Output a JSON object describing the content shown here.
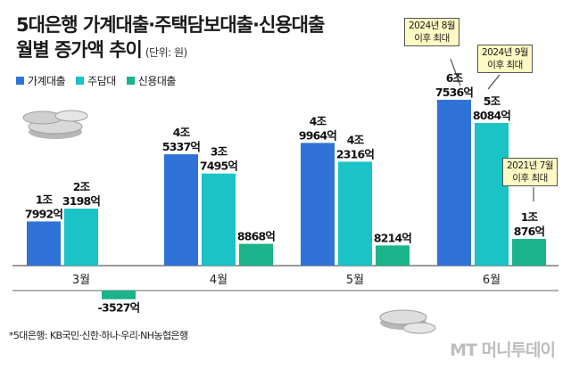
{
  "title_line1": "5대은행 가계대출·주택담보대출·신용대출",
  "title_line2": "월별 증가액 추이",
  "unit": "(단위: 원)",
  "legend": [
    {
      "label": "가계대출",
      "color": "#2f73d8"
    },
    {
      "label": "주담대",
      "color": "#19c3c6"
    },
    {
      "label": "신용대출",
      "color": "#1bb38a"
    }
  ],
  "callouts": [
    {
      "line1": "2024년 8월",
      "line2": "이후 최대"
    },
    {
      "line1": "2024년 9월",
      "line2": "이후 최대"
    },
    {
      "line1": "2021년 7월",
      "line2": "이후 최대"
    }
  ],
  "footnote": "*5대은행: KB국민·신한·하나·우리·NH농협은행",
  "brand": "MT 머니투데이",
  "chart_data": {
    "type": "bar",
    "categories": [
      "3월",
      "4월",
      "5월",
      "6월"
    ],
    "series": [
      {
        "name": "가계대출",
        "color": "#2f73d8",
        "values": [
          17992,
          45337,
          49964,
          67536
        ],
        "labels": [
          [
            "1조",
            "7992억"
          ],
          [
            "4조",
            "5337억"
          ],
          [
            "4조",
            "9964억"
          ],
          [
            "6조",
            "7536억"
          ]
        ]
      },
      {
        "name": "주담대",
        "color": "#19c3c6",
        "values": [
          23198,
          37495,
          42316,
          58084
        ],
        "labels": [
          [
            "2조",
            "3198억"
          ],
          [
            "3조",
            "7495억"
          ],
          [
            "4조",
            "2316억"
          ],
          [
            "5조",
            "8084억"
          ]
        ]
      },
      {
        "name": "신용대출",
        "color": "#1bb38a",
        "values": [
          -3527,
          8868,
          8214,
          10876
        ],
        "labels": [
          [
            "-3527억"
          ],
          [
            "8868억"
          ],
          [
            "8214억"
          ],
          [
            "1조",
            "876억"
          ]
        ]
      }
    ],
    "unit": "억원",
    "grid": false
  }
}
